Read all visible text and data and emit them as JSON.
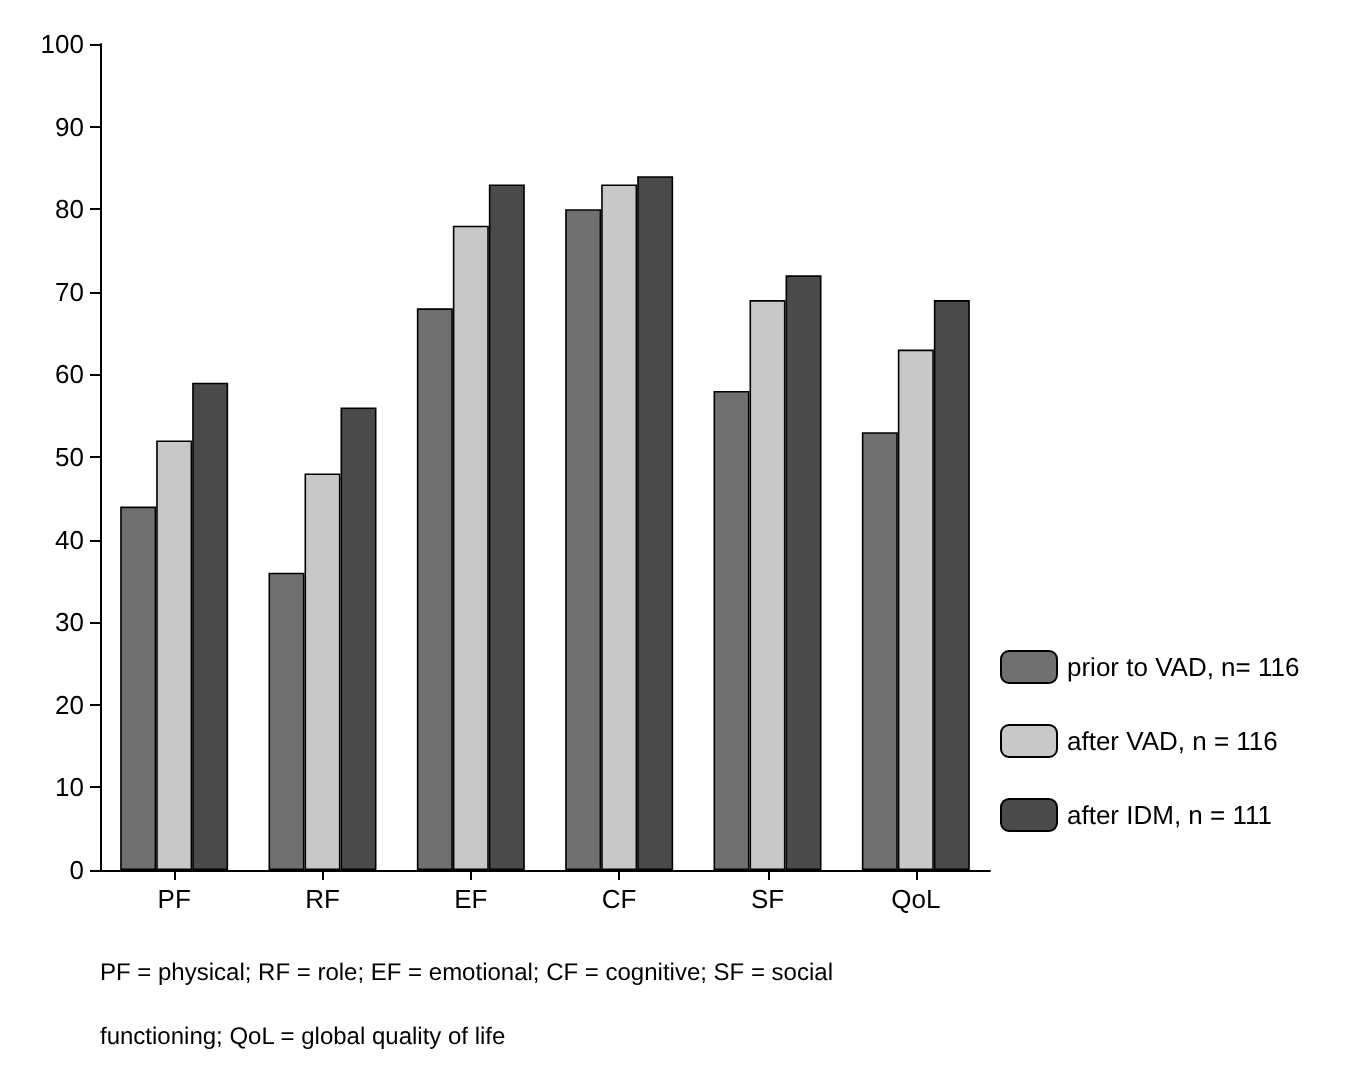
{
  "chart_data": {
    "type": "bar",
    "categories": [
      "PF",
      "RF",
      "EF",
      "CF",
      "SF",
      "QoL"
    ],
    "series": [
      {
        "name": "prior to VAD, n= 116",
        "color": "#707070",
        "values": [
          44,
          36,
          68,
          80,
          58,
          53
        ]
      },
      {
        "name": "after VAD, n = 116",
        "color": "#c8c8c8",
        "values": [
          52,
          48,
          78,
          83,
          69,
          63
        ]
      },
      {
        "name": "after IDM, n = 111",
        "color": "#4a4a4a",
        "values": [
          59,
          56,
          83,
          84,
          72,
          69
        ]
      }
    ],
    "ylim": [
      0,
      100
    ],
    "yticks": [
      0,
      10,
      20,
      30,
      40,
      50,
      60,
      70,
      80,
      90,
      100
    ],
    "grid": false,
    "legend": "bottom right",
    "annotations": [
      "PF = physical; RF = role; EF = emotional; CF = cognitive; SF = social functioning; QoL = global quality of life"
    ]
  }
}
